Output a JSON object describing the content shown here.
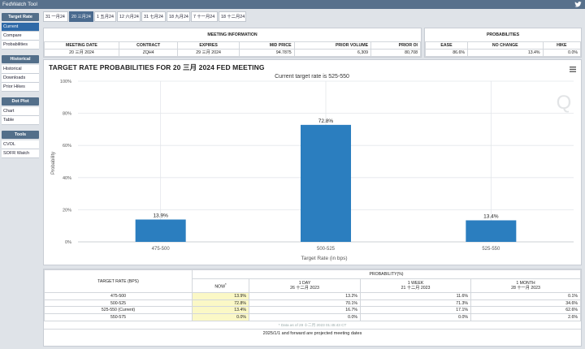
{
  "window": {
    "title": "FedWatch Tool"
  },
  "sidebar": {
    "sections": [
      {
        "header": "Target Rate",
        "items": [
          "Current",
          "Compare",
          "Probabilities"
        ]
      },
      {
        "header": "Historical",
        "items": [
          "Historical",
          "Downloads",
          "Prior Hikes"
        ]
      },
      {
        "header": "Dot Plot",
        "items": [
          "Chart",
          "Table"
        ]
      },
      {
        "header": "Tools",
        "items": [
          "CVOL",
          "SOFR Watch"
        ]
      }
    ]
  },
  "tabs": [
    "31 一月24",
    "20 三月24",
    "1 五月24",
    "12 六月24",
    "31 七月24",
    "18 九月24",
    "7 十一月24",
    "18 十二月24"
  ],
  "meeting_info": {
    "header": "MEETING INFORMATION",
    "columns": [
      "MEETING DATE",
      "CONTRACT",
      "EXPIRES",
      "MID PRICE",
      "PRIOR VOLUME",
      "PRIOR OI"
    ],
    "values": [
      "20 三月 2024",
      "ZQH4",
      "29 三月 2024",
      "94.7875",
      "6,309",
      "80,708"
    ]
  },
  "probabilities": {
    "header": "PROBABILITIES",
    "columns": [
      "EASE",
      "NO CHANGE",
      "HIKE"
    ],
    "values": [
      "86.6%",
      "13.4%",
      "0.0%"
    ]
  },
  "chart": {
    "title": "TARGET RATE PROBABILITIES FOR 20 三月 2024 FED MEETING",
    "subtitle": "Current target rate is 525-550",
    "watermark": "Q"
  },
  "chart_data": {
    "type": "bar",
    "title": "TARGET RATE PROBABILITIES FOR 20 三月 2024 FED MEETING",
    "subtitle": "Current target rate is 525-550",
    "categories": [
      "475-500",
      "500-525",
      "525-550"
    ],
    "values": [
      13.9,
      72.8,
      13.4
    ],
    "value_labels": [
      "13.9%",
      "72.8%",
      "13.4%"
    ],
    "xlabel": "Target Rate (in bps)",
    "ylabel": "Probability",
    "ylim": [
      0,
      100
    ],
    "yticks": [
      "0%",
      "20%",
      "40%",
      "60%",
      "80%",
      "100%"
    ],
    "ytick_values": [
      0,
      20,
      40,
      60,
      80,
      100
    ],
    "grid": true,
    "bar_color": "#2b7ebf"
  },
  "prob_table": {
    "col_target": "TARGET RATE (BPS)",
    "col_prob": "PROBABILITY(%)",
    "subcols": [
      {
        "line1": "NOW",
        "line2": "",
        "sup": "*"
      },
      {
        "line1": "1 DAY",
        "line2": "26 十二月 2023",
        "sup": ""
      },
      {
        "line1": "1 WEEK",
        "line2": "21 十二月 2023",
        "sup": ""
      },
      {
        "line1": "1 MONTH",
        "line2": "28 十一月 2023",
        "sup": ""
      }
    ],
    "rows": [
      {
        "rate": "475-500",
        "vals": [
          "13.9%",
          "13.2%",
          "11.6%",
          "0.1%"
        ]
      },
      {
        "rate": "500-525",
        "vals": [
          "72.8%",
          "70.1%",
          "71.3%",
          "34.6%"
        ]
      },
      {
        "rate": "525-550 (Current)",
        "vals": [
          "13.4%",
          "16.7%",
          "17.1%",
          "62.6%"
        ]
      },
      {
        "rate": "550-575",
        "vals": [
          "0.0%",
          "0.0%",
          "0.0%",
          "2.6%"
        ]
      }
    ],
    "note": "* Data as of 28 十二月 2023 01:45:43 CT",
    "footer": "2025/1/1 and forward are projected meeting dates"
  }
}
